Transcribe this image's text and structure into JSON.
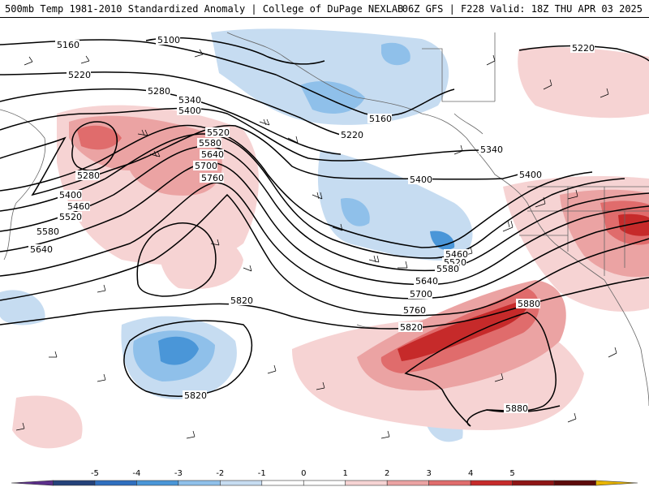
{
  "title": {
    "left": "500mb Temp 1981-2010 Standardized Anomaly | College of DuPage NEXLAB",
    "right": "06Z GFS | F228 Valid: 18Z THU APR 03 2025"
  },
  "colors": {
    "anom_neg_3": "#4a96d8",
    "anom_neg_2": "#8fc0ea",
    "anom_neg_1": "#c6dcf1",
    "anom_pos_1": "#f6d3d3",
    "anom_pos_2": "#eba3a3",
    "anom_pos_3": "#e06c6c",
    "anom_pos_4": "#c62a2a",
    "anom_pos_5": "#8e1414",
    "contour": "#000000",
    "coast": "#666666"
  },
  "contour_labels": [
    "5100",
    "5160",
    "5220",
    "5280",
    "5340",
    "5400",
    "5460",
    "5520",
    "5580",
    "5640",
    "5700",
    "5760",
    "5820",
    "5880",
    "5160",
    "5220",
    "5340",
    "5400",
    "5400",
    "5460",
    "5520",
    "5580",
    "5640",
    "5700",
    "5760",
    "5820",
    "5280",
    "5400",
    "5460",
    "5520",
    "5580",
    "5640",
    "5820",
    "5820",
    "5880",
    "5880",
    "5220"
  ],
  "colorbar": {
    "ticks": [
      "-5",
      "-4",
      "-3",
      "-2",
      "-1",
      "0",
      "1",
      "2",
      "3",
      "4",
      "5"
    ],
    "colors": [
      "#5b2e8a",
      "#24427a",
      "#2f6fbf",
      "#4a96d8",
      "#8fc0ea",
      "#c6dcf1",
      "#ffffff",
      "#ffffff",
      "#f6d3d3",
      "#eba3a3",
      "#e06c6c",
      "#c62a2a",
      "#8e1414",
      "#5c0a0a",
      "#e8b400"
    ]
  }
}
